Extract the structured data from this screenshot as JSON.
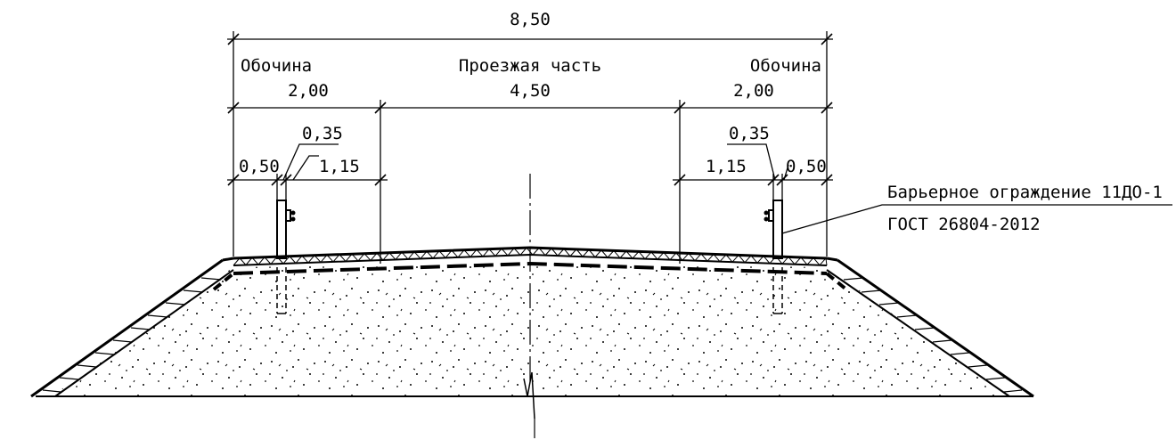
{
  "dimensions": {
    "total_width": "8,50",
    "left_shoulder_label": "Обочина",
    "carriageway_label": "Проезжая часть",
    "right_shoulder_label": "Обочина",
    "left_shoulder_width": "2,00",
    "carriageway_width": "4,50",
    "right_shoulder_width": "2,00",
    "left_post_width": "0,35",
    "right_post_width": "0,35",
    "left_edge_offset": "0,50",
    "left_inner_offset": "1,15",
    "right_inner_offset": "1,15",
    "right_edge_offset": "0,50"
  },
  "callout": {
    "line1": "Барьерное ограждение 11ДО-1",
    "line2": "ГОСТ 26804-2012"
  }
}
